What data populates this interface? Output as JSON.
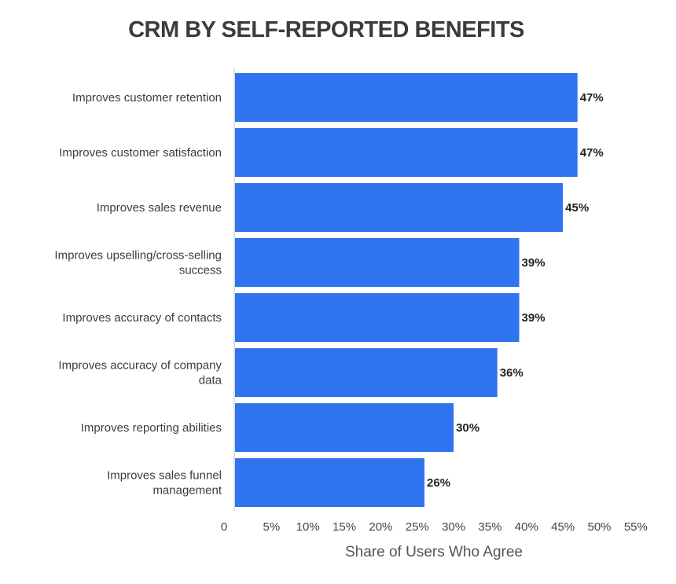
{
  "chart_data": {
    "type": "bar",
    "orientation": "horizontal",
    "title": "CRM BY SELF-REPORTED BENEFITS",
    "xlabel": "Share of Users Who Agree",
    "ylabel": "",
    "categories": [
      "Improves customer retention",
      "Improves customer satisfaction",
      "Improves sales revenue",
      "Improves upselling/cross-selling success",
      "Improves accuracy of contacts",
      "Improves accuracy of company data",
      "Improves reporting abilities",
      "Improves sales funnel management"
    ],
    "category_lines": [
      [
        "Improves customer retention"
      ],
      [
        "Improves customer satisfaction"
      ],
      [
        "Improves sales revenue"
      ],
      [
        "Improves upselling/cross-selling",
        "success"
      ],
      [
        "Improves accuracy of contacts"
      ],
      [
        "Improves accuracy of company",
        "data"
      ],
      [
        "Improves reporting abilities"
      ],
      [
        "Improves sales funnel",
        "management"
      ]
    ],
    "values": [
      47,
      47,
      45,
      39,
      39,
      36,
      30,
      26
    ],
    "value_labels": [
      "47%",
      "47%",
      "45%",
      "39%",
      "39%",
      "36%",
      "30%",
      "26%"
    ],
    "xlim": [
      0,
      55
    ],
    "x_ticks": [
      0,
      5,
      10,
      15,
      20,
      25,
      30,
      35,
      40,
      45,
      50,
      55
    ],
    "x_tick_labels": [
      "0",
      "5%",
      "10%",
      "15%",
      "20%",
      "25%",
      "30%",
      "35%",
      "40%",
      "45%",
      "50%",
      "55%"
    ],
    "grid": false,
    "legend": "none",
    "bar_color": "#2f73ee",
    "axis_color": "#d6d6d6"
  }
}
